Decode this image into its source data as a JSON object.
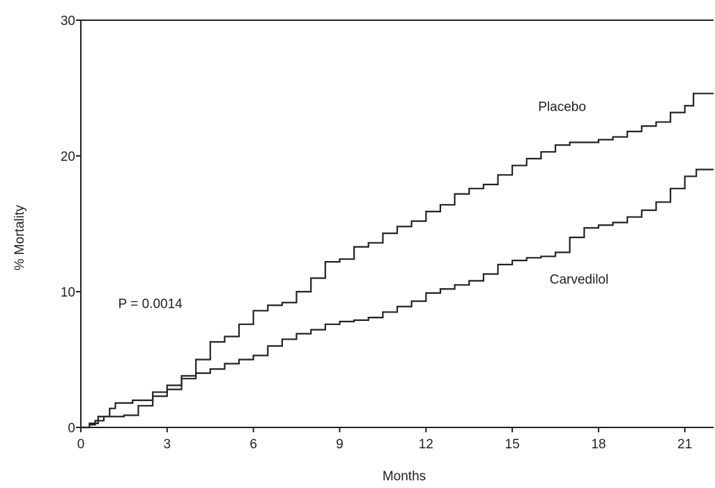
{
  "chart_data": {
    "type": "line",
    "title": "",
    "xlabel": "Months",
    "ylabel": "% Mortality",
    "xlim": [
      0,
      22
    ],
    "ylim": [
      0,
      30
    ],
    "x_ticks": [
      0,
      3,
      6,
      9,
      12,
      15,
      18,
      21
    ],
    "y_ticks": [
      0,
      10,
      20,
      30
    ],
    "grid": false,
    "legend": "none",
    "annotations": [
      {
        "text": "P = 0.0014",
        "x": 1.3,
        "y": 8.8
      }
    ],
    "series": [
      {
        "name": "Placebo",
        "label_at": {
          "x": 15.9,
          "y": 23.3
        },
        "step": true,
        "points": [
          [
            0,
            0
          ],
          [
            0.3,
            0.2
          ],
          [
            0.5,
            0.5
          ],
          [
            0.8,
            0.8
          ],
          [
            1.5,
            0.9
          ],
          [
            2.0,
            1.6
          ],
          [
            2.5,
            2.3
          ],
          [
            3.0,
            2.8
          ],
          [
            3.5,
            3.8
          ],
          [
            4.0,
            5.0
          ],
          [
            4.5,
            6.3
          ],
          [
            5.0,
            6.7
          ],
          [
            5.5,
            7.6
          ],
          [
            6.0,
            8.6
          ],
          [
            6.5,
            9.0
          ],
          [
            7.0,
            9.2
          ],
          [
            7.5,
            10.0
          ],
          [
            8.0,
            11.0
          ],
          [
            8.5,
            12.2
          ],
          [
            9.0,
            12.4
          ],
          [
            9.5,
            13.3
          ],
          [
            10.0,
            13.6
          ],
          [
            10.5,
            14.3
          ],
          [
            11.0,
            14.8
          ],
          [
            11.5,
            15.2
          ],
          [
            12.0,
            15.9
          ],
          [
            12.5,
            16.4
          ],
          [
            13.0,
            17.2
          ],
          [
            13.5,
            17.6
          ],
          [
            14.0,
            17.9
          ],
          [
            14.5,
            18.6
          ],
          [
            15.0,
            19.3
          ],
          [
            15.5,
            19.8
          ],
          [
            16.0,
            20.3
          ],
          [
            16.5,
            20.8
          ],
          [
            17.0,
            21.0
          ],
          [
            17.5,
            21.0
          ],
          [
            18.0,
            21.2
          ],
          [
            18.5,
            21.4
          ],
          [
            19.0,
            21.8
          ],
          [
            19.5,
            22.2
          ],
          [
            20.0,
            22.5
          ],
          [
            20.5,
            23.2
          ],
          [
            21.0,
            23.7
          ],
          [
            21.3,
            24.6
          ],
          [
            22.0,
            24.6
          ]
        ]
      },
      {
        "name": "Carvedilol",
        "label_at": {
          "x": 16.3,
          "y": 10.6
        },
        "step": true,
        "points": [
          [
            0,
            0
          ],
          [
            0.3,
            0.3
          ],
          [
            0.6,
            0.8
          ],
          [
            1.0,
            1.4
          ],
          [
            1.2,
            1.8
          ],
          [
            1.8,
            2.0
          ],
          [
            2.5,
            2.6
          ],
          [
            3.0,
            3.1
          ],
          [
            3.5,
            3.6
          ],
          [
            4.0,
            4.0
          ],
          [
            4.5,
            4.3
          ],
          [
            5.0,
            4.7
          ],
          [
            5.5,
            5.0
          ],
          [
            6.0,
            5.3
          ],
          [
            6.5,
            6.0
          ],
          [
            7.0,
            6.5
          ],
          [
            7.5,
            6.9
          ],
          [
            8.0,
            7.2
          ],
          [
            8.5,
            7.6
          ],
          [
            9.0,
            7.8
          ],
          [
            9.5,
            7.9
          ],
          [
            10.0,
            8.1
          ],
          [
            10.5,
            8.5
          ],
          [
            11.0,
            8.9
          ],
          [
            11.5,
            9.3
          ],
          [
            12.0,
            9.9
          ],
          [
            12.5,
            10.2
          ],
          [
            13.0,
            10.5
          ],
          [
            13.5,
            10.8
          ],
          [
            14.0,
            11.3
          ],
          [
            14.5,
            12.0
          ],
          [
            15.0,
            12.3
          ],
          [
            15.5,
            12.5
          ],
          [
            16.0,
            12.6
          ],
          [
            16.5,
            12.9
          ],
          [
            17.0,
            14.0
          ],
          [
            17.5,
            14.7
          ],
          [
            18.0,
            14.9
          ],
          [
            18.5,
            15.1
          ],
          [
            19.0,
            15.5
          ],
          [
            19.5,
            16.0
          ],
          [
            20.0,
            16.6
          ],
          [
            20.5,
            17.6
          ],
          [
            21.0,
            18.5
          ],
          [
            21.4,
            19.0
          ],
          [
            22.0,
            19.0
          ]
        ]
      }
    ]
  }
}
